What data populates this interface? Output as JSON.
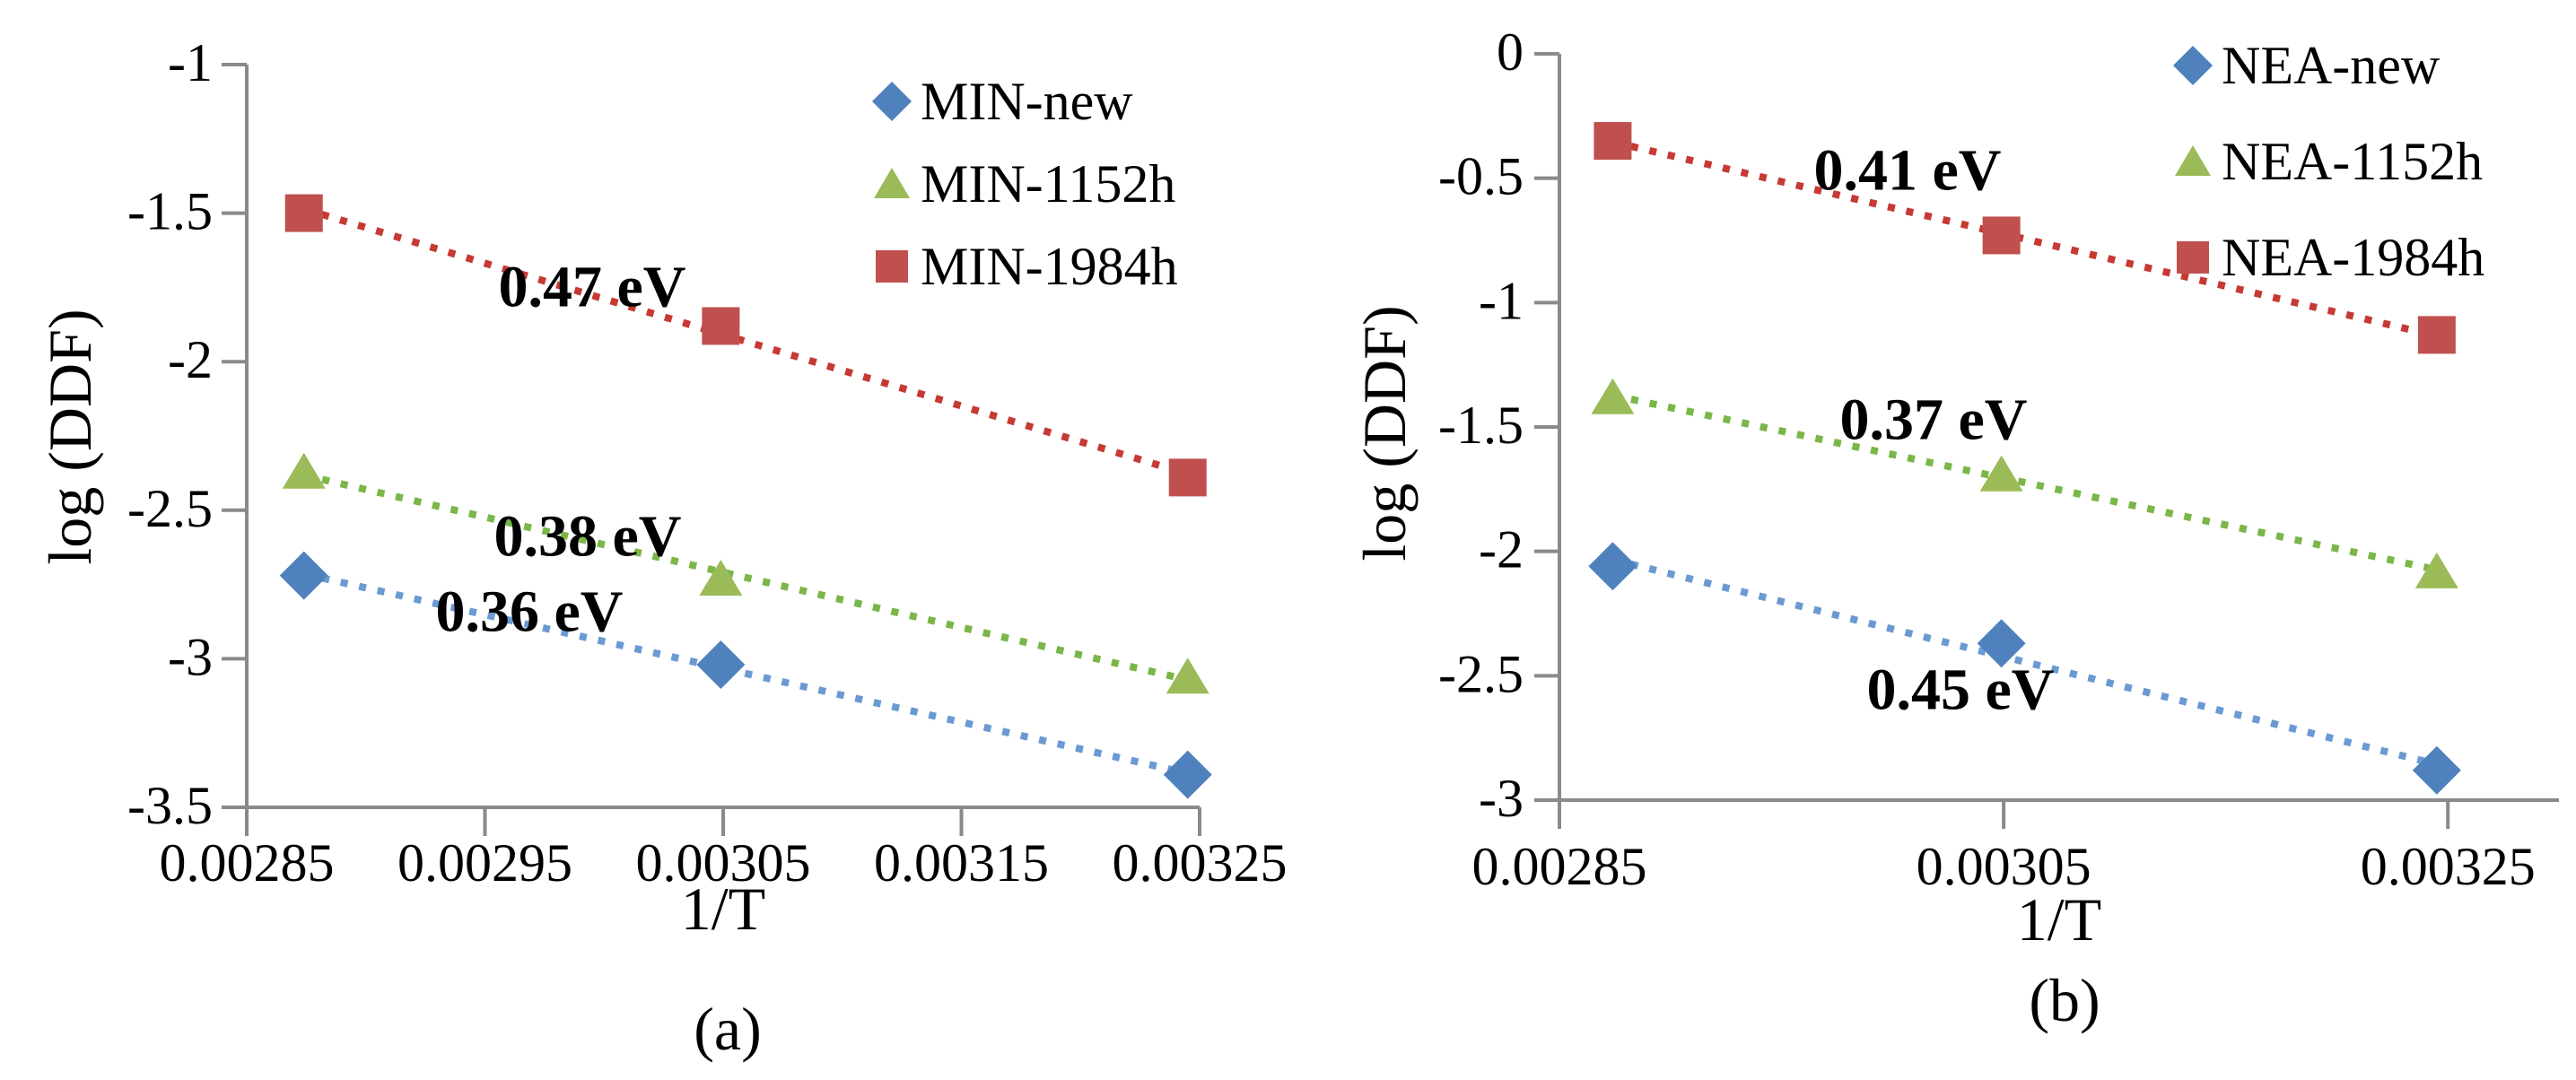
{
  "figure": {
    "background": "#ffffff",
    "axis_color": "#8a8a8a",
    "text_color": "#000000"
  },
  "chart_data": [
    {
      "type": "scatter",
      "caption": "(a)",
      "xlabel": "1/T",
      "ylabel": "log (DDF)",
      "xlim": [
        0.00285,
        0.00325
      ],
      "ylim": [
        -3.5,
        -1
      ],
      "grid": false,
      "legend_position": "top-right",
      "x_ticks": {
        "values": [
          0.00285,
          0.00295,
          0.00305,
          0.00315,
          0.00325
        ],
        "labels": [
          "0.00285",
          "0.00295",
          "0.00305",
          "0.00315",
          "0.00325"
        ]
      },
      "y_ticks": {
        "values": [
          -1,
          -1.5,
          -2,
          -2.5,
          -3,
          -3.5
        ],
        "labels": [
          "-1",
          "-1.5",
          "-2",
          "-2.5",
          "-3",
          "-3.5"
        ]
      },
      "series": [
        {
          "name": "MIN-new",
          "marker": "diamond",
          "marker_color": "#4F81BD",
          "line_color": "#6B9AD2",
          "x": [
            0.002874,
            0.003049,
            0.003245
          ],
          "y": [
            -2.72,
            -3.02,
            -3.39
          ],
          "trendline": "dotted-linear",
          "annotation": {
            "text": "0.36 eV",
            "px": 590,
            "py": 682
          }
        },
        {
          "name": "MIN-1152h",
          "marker": "triangle",
          "marker_color": "#9BBB59",
          "line_color": "#7AB648",
          "x": [
            0.002874,
            0.003049,
            0.003245
          ],
          "y": [
            -2.37,
            -2.73,
            -3.06
          ],
          "trendline": "dotted-linear",
          "annotation": {
            "text": "0.38 eV",
            "px": 655,
            "py": 598
          }
        },
        {
          "name": "MIN-1984h",
          "marker": "square",
          "marker_color": "#C0504D",
          "line_color": "#C63934",
          "x": [
            0.002874,
            0.003049,
            0.003245
          ],
          "y": [
            -1.5,
            -1.88,
            -2.39
          ],
          "trendline": "dotted-linear",
          "annotation": {
            "text": "0.47 eV",
            "px": 660,
            "py": 320
          }
        }
      ]
    },
    {
      "type": "scatter",
      "caption": "(b)",
      "xlabel": "1/T",
      "ylabel": "log (DDF)",
      "xlim": [
        0.00285,
        0.0033
      ],
      "ylim": [
        -3,
        0
      ],
      "grid": false,
      "legend_position": "top-right",
      "x_ticks": {
        "values": [
          0.00285,
          0.00305,
          0.00325
        ],
        "labels": [
          "0.00285",
          "0.00305",
          "0.00325"
        ]
      },
      "y_ticks": {
        "values": [
          0,
          -0.5,
          -1,
          -1.5,
          -2,
          -2.5,
          -3
        ],
        "labels": [
          "0",
          "-0.5",
          "-1",
          "-1.5",
          "-2",
          "-2.5",
          "-3"
        ]
      },
      "series": [
        {
          "name": "NEA-new",
          "marker": "diamond",
          "marker_color": "#4F81BD",
          "line_color": "#6B9AD2",
          "x": [
            0.002874,
            0.003049,
            0.003245
          ],
          "y": [
            -2.06,
            -2.37,
            -2.88
          ],
          "trendline": "dotted-linear",
          "annotation": {
            "text": "0.45 eV",
            "px": 2185,
            "py": 769
          }
        },
        {
          "name": "NEA-1152h",
          "marker": "triangle",
          "marker_color": "#9BBB59",
          "line_color": "#7AB648",
          "x": [
            0.002874,
            0.003049,
            0.003245
          ],
          "y": [
            -1.38,
            -1.69,
            -2.08
          ],
          "trendline": "dotted-linear",
          "annotation": {
            "text": "0.37 eV",
            "px": 2155,
            "py": 468
          }
        },
        {
          "name": "NEA-1984h",
          "marker": "square",
          "marker_color": "#C0504D",
          "line_color": "#C63934",
          "x": [
            0.002874,
            0.003049,
            0.003245
          ],
          "y": [
            -0.35,
            -0.73,
            -1.13
          ],
          "trendline": "dotted-linear",
          "annotation": {
            "text": "0.41 eV",
            "px": 2126,
            "py": 190
          }
        }
      ]
    }
  ]
}
